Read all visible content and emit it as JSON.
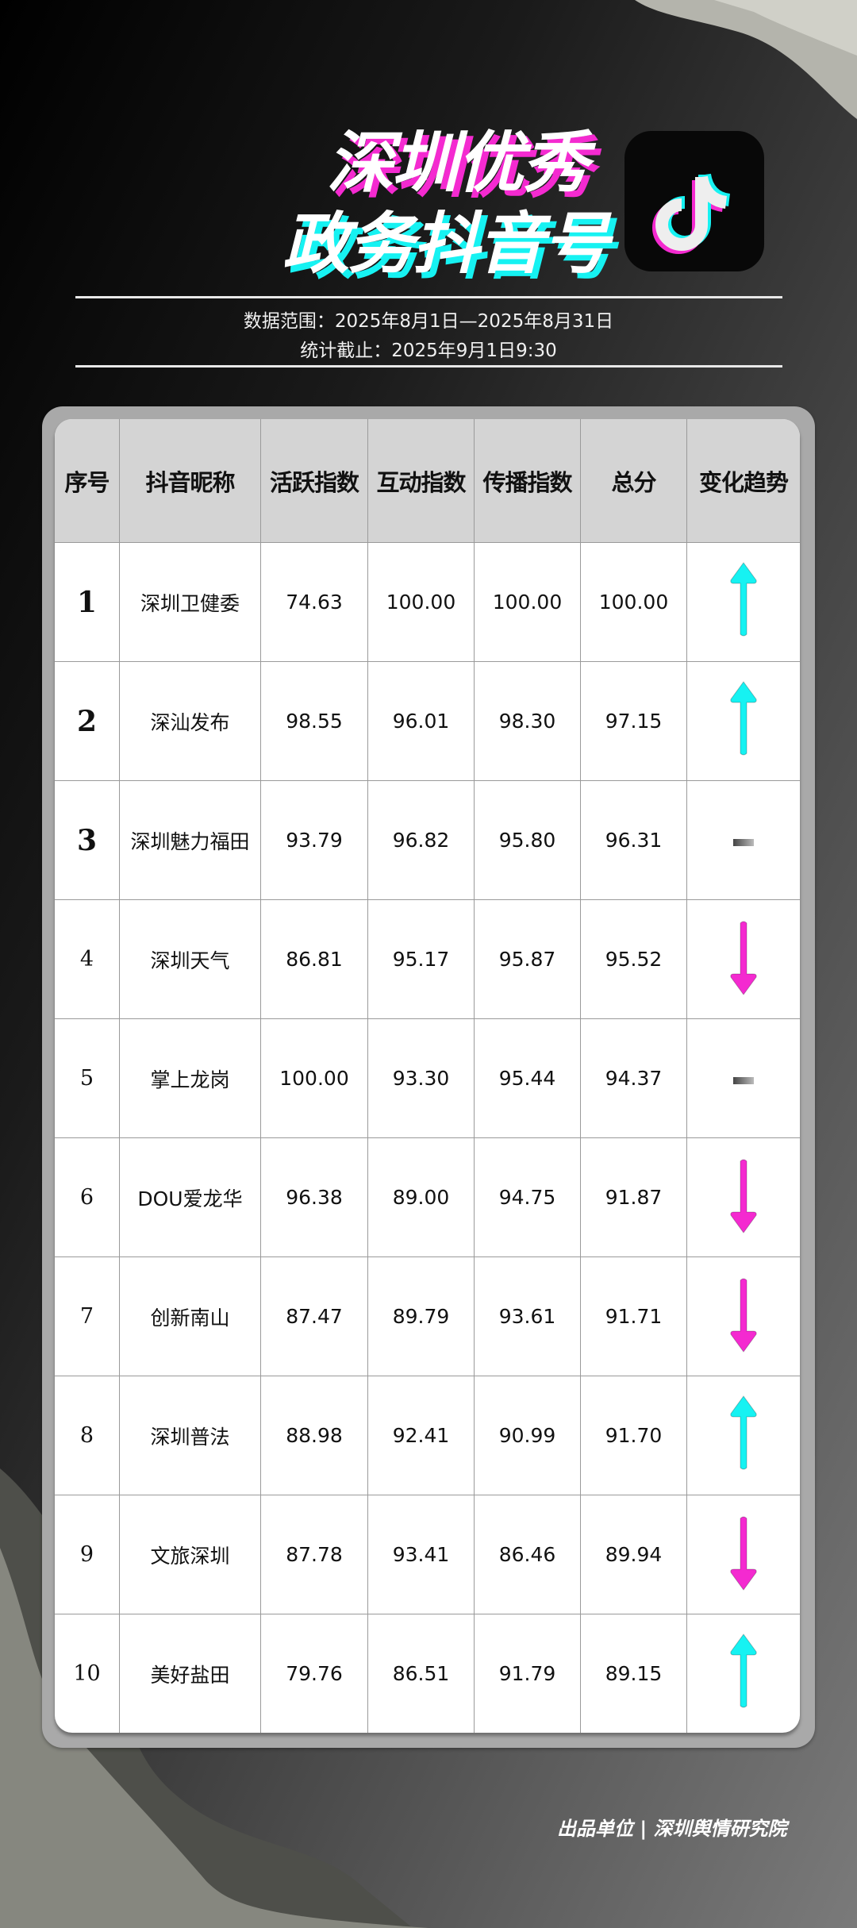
{
  "header": {
    "title_line1": "深圳优秀",
    "title_line2": "政务抖音号",
    "logo": "douyin-logo-icon",
    "data_range": "数据范围：2025年8月1日—2025年8月31日",
    "cutoff": "统计截止：2025年9月1日9:30"
  },
  "colors": {
    "up": "#16f2f2",
    "down": "#f42ad0",
    "flat": "#777777"
  },
  "table": {
    "columns": [
      "序号",
      "抖音昵称",
      "活跃指数",
      "互动指数",
      "传播指数",
      "总分",
      "变化趋势"
    ],
    "rows": [
      {
        "rank": "1",
        "name": "深圳卫健委",
        "active": "74.63",
        "interact": "100.00",
        "spread": "100.00",
        "total": "100.00",
        "trend": "up"
      },
      {
        "rank": "2",
        "name": "深汕发布",
        "active": "98.55",
        "interact": "96.01",
        "spread": "98.30",
        "total": "97.15",
        "trend": "up"
      },
      {
        "rank": "3",
        "name": "深圳魅力福田",
        "active": "93.79",
        "interact": "96.82",
        "spread": "95.80",
        "total": "96.31",
        "trend": "flat"
      },
      {
        "rank": "4",
        "name": "深圳天气",
        "active": "86.81",
        "interact": "95.17",
        "spread": "95.87",
        "total": "95.52",
        "trend": "down"
      },
      {
        "rank": "5",
        "name": "掌上龙岗",
        "active": "100.00",
        "interact": "93.30",
        "spread": "95.44",
        "total": "94.37",
        "trend": "flat"
      },
      {
        "rank": "6",
        "name": "DOU爱龙华",
        "active": "96.38",
        "interact": "89.00",
        "spread": "94.75",
        "total": "91.87",
        "trend": "down"
      },
      {
        "rank": "7",
        "name": "创新南山",
        "active": "87.47",
        "interact": "89.79",
        "spread": "93.61",
        "total": "91.71",
        "trend": "down"
      },
      {
        "rank": "8",
        "name": "深圳普法",
        "active": "88.98",
        "interact": "92.41",
        "spread": "90.99",
        "total": "91.70",
        "trend": "up"
      },
      {
        "rank": "9",
        "name": "文旅深圳",
        "active": "87.78",
        "interact": "93.41",
        "spread": "86.46",
        "total": "89.94",
        "trend": "down"
      },
      {
        "rank": "10",
        "name": "美好盐田",
        "active": "79.76",
        "interact": "86.51",
        "spread": "91.79",
        "total": "89.15",
        "trend": "up"
      }
    ]
  },
  "footer": "出品单位 | 深圳舆情研究院"
}
